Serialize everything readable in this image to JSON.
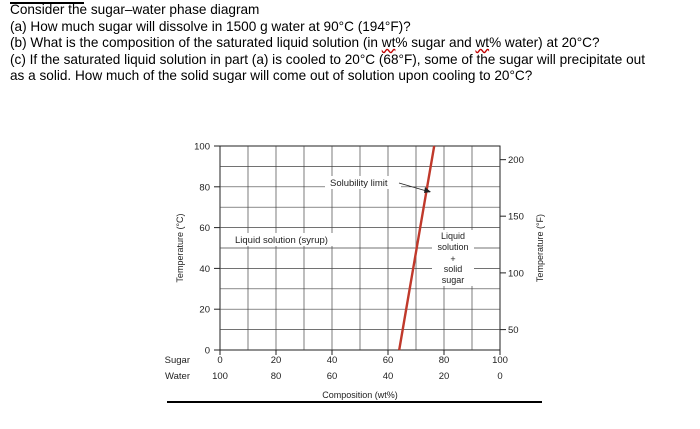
{
  "question": {
    "heading": "Consider the sugar–water phase diagram",
    "a": "(a) How much sugar will dissolve in 1500 g water at 90°C (194°F)?",
    "b_pre": "(b) What is the composition of the saturated liquid solution (in ",
    "b_wt1": "wt",
    "b_mid": "% sugar and ",
    "b_wt2": "wt",
    "b_post": "% water) at 20°C?",
    "c_line1": "(c) If the saturated liquid solution in part (a) is cooled to 20°C (68°F), some of the sugar will precipitate out",
    "c_line2": "as a solid. How much of the solid sugar will come out of solution upon cooling to 20°C?"
  },
  "chart_data": {
    "type": "line",
    "title": "",
    "xlabel": "Composition (wt%)",
    "ylabel_left": "Temperature (°C)",
    "ylabel_right": "Temperature (°F)",
    "xlim": [
      0,
      100
    ],
    "ylim": [
      0,
      100
    ],
    "x_row_sugar_label": "Sugar",
    "x_row_water_label": "Water",
    "x_ticks_sugar": [
      "0",
      "20",
      "40",
      "60",
      "80",
      "100"
    ],
    "x_ticks_water": [
      "100",
      "80",
      "60",
      "40",
      "20",
      "0"
    ],
    "y_ticks_celsius": [
      "0",
      "20",
      "40",
      "60",
      "80",
      "100"
    ],
    "y_ticks_fahrenheit": [
      {
        "value": 50,
        "label": "50",
        "celsius": 10
      },
      {
        "value": 100,
        "label": "100",
        "celsius": 37.8
      },
      {
        "value": 150,
        "label": "150",
        "celsius": 65.6
      },
      {
        "value": 200,
        "label": "200",
        "celsius": 93.3
      }
    ],
    "series": [
      {
        "name": "Solubility limit",
        "color": "#c0392b",
        "x": [
          64,
          65.5,
          67,
          68.5,
          70,
          71.5,
          73,
          74.5,
          76.5
        ],
        "y": [
          0,
          12,
          24,
          36,
          48,
          60,
          72,
          84,
          100
        ]
      }
    ],
    "annotations": {
      "solubility_limit": "Solubility limit",
      "liquid_region": "Liquid solution (syrup)",
      "two_phase_region": [
        "Liquid",
        "solution",
        "+",
        "solid",
        "sugar"
      ]
    },
    "grid": true
  }
}
